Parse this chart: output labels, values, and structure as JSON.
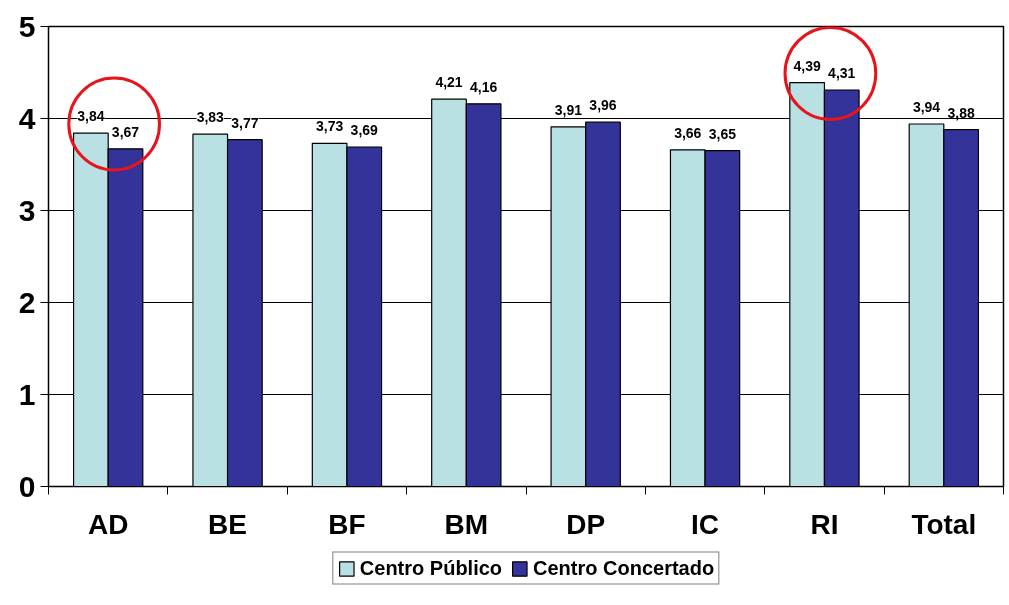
{
  "chart_data": {
    "type": "bar",
    "categories": [
      "AD",
      "BE",
      "BF",
      "BM",
      "DP",
      "IC",
      "RI",
      "Total"
    ],
    "series": [
      {
        "name": "Centro Público",
        "color": "#b9e0e3",
        "values": [
          3.84,
          3.83,
          3.73,
          4.21,
          3.91,
          3.66,
          4.39,
          3.94
        ],
        "value_labels": [
          "3,84",
          "3,83",
          "3,73",
          "4,21",
          "3,91",
          "3,66",
          "4,39",
          "3,94"
        ]
      },
      {
        "name": "Centro Concertado",
        "color": "#333399",
        "values": [
          3.67,
          3.77,
          3.69,
          4.16,
          3.96,
          3.65,
          4.31,
          3.88
        ],
        "value_labels": [
          "3,67",
          "3,77",
          "3,69",
          "4,16",
          "3,96",
          "3,65",
          "4,31",
          "3,88"
        ]
      }
    ],
    "ylim": [
      0,
      5
    ],
    "yticks": [
      0,
      1,
      2,
      3,
      4,
      5
    ],
    "grid": "y",
    "legend": "bottom"
  }
}
